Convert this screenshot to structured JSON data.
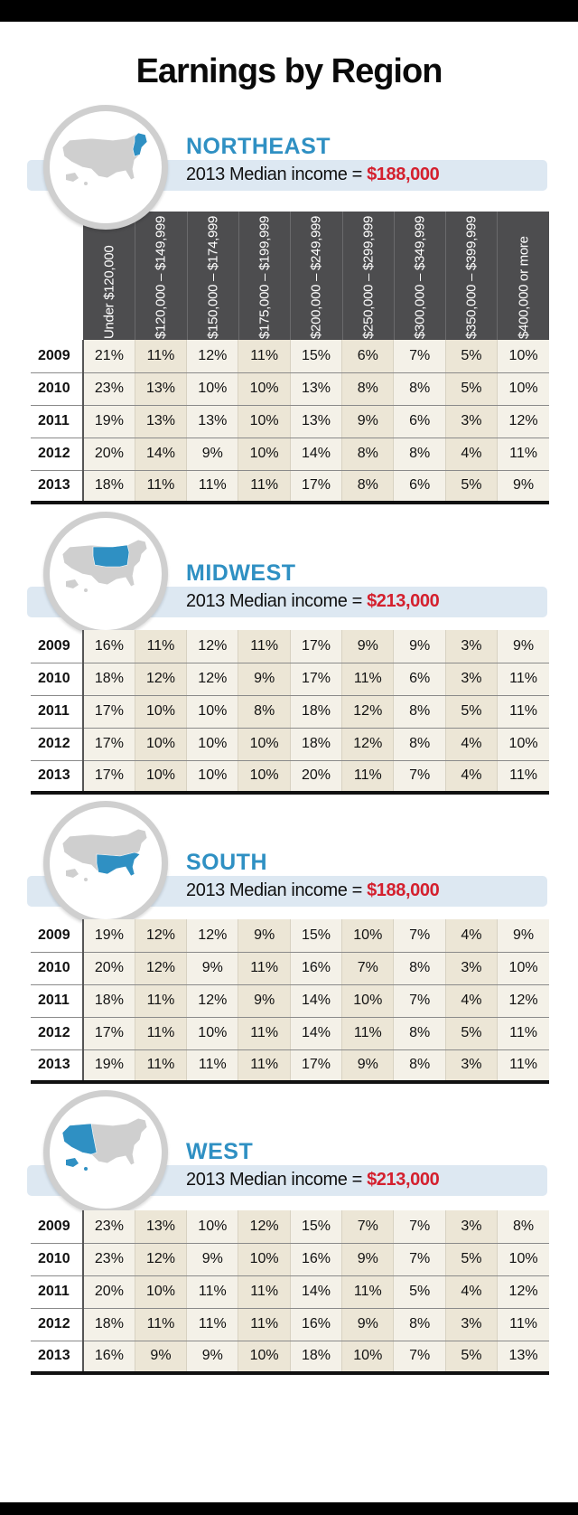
{
  "title": "Earnings by Region",
  "columns": [
    "Under $120,000",
    "$120,000 – $149,999",
    "$150,000 – $174,999",
    "$175,000 – $199,999",
    "$200,000 – $249,999",
    "$250,000 – $299,999",
    "$300,000 – $349,999",
    "$350,000 – $399,999",
    "$400,000 or more"
  ],
  "median_prefix": "2013 Median income = ",
  "colors": {
    "accent_blue": "#2f90c3",
    "median_red": "#d4202e",
    "header_gray": "#4d4d4f",
    "band_blue": "#dde8f2"
  },
  "regions": [
    {
      "name": "NORTHEAST",
      "median": "$188,000",
      "map_icon": "usa-map-northeast-icon",
      "rows": [
        {
          "year": "2009",
          "values": [
            "21%",
            "11%",
            "12%",
            "11%",
            "15%",
            "6%",
            "7%",
            "5%",
            "10%"
          ]
        },
        {
          "year": "2010",
          "values": [
            "23%",
            "13%",
            "10%",
            "10%",
            "13%",
            "8%",
            "8%",
            "5%",
            "10%"
          ]
        },
        {
          "year": "2011",
          "values": [
            "19%",
            "13%",
            "13%",
            "10%",
            "13%",
            "9%",
            "6%",
            "3%",
            "12%"
          ]
        },
        {
          "year": "2012",
          "values": [
            "20%",
            "14%",
            "9%",
            "10%",
            "14%",
            "8%",
            "8%",
            "4%",
            "11%"
          ]
        },
        {
          "year": "2013",
          "values": [
            "18%",
            "11%",
            "11%",
            "11%",
            "17%",
            "8%",
            "6%",
            "5%",
            "9%"
          ]
        }
      ]
    },
    {
      "name": "MIDWEST",
      "median": "$213,000",
      "map_icon": "usa-map-midwest-icon",
      "rows": [
        {
          "year": "2009",
          "values": [
            "16%",
            "11%",
            "12%",
            "11%",
            "17%",
            "9%",
            "9%",
            "3%",
            "9%"
          ]
        },
        {
          "year": "2010",
          "values": [
            "18%",
            "12%",
            "12%",
            "9%",
            "17%",
            "11%",
            "6%",
            "3%",
            "11%"
          ]
        },
        {
          "year": "2011",
          "values": [
            "17%",
            "10%",
            "10%",
            "8%",
            "18%",
            "12%",
            "8%",
            "5%",
            "11%"
          ]
        },
        {
          "year": "2012",
          "values": [
            "17%",
            "10%",
            "10%",
            "10%",
            "18%",
            "12%",
            "8%",
            "4%",
            "10%"
          ]
        },
        {
          "year": "2013",
          "values": [
            "17%",
            "10%",
            "10%",
            "10%",
            "20%",
            "11%",
            "7%",
            "4%",
            "11%"
          ]
        }
      ]
    },
    {
      "name": "SOUTH",
      "median": "$188,000",
      "map_icon": "usa-map-south-icon",
      "rows": [
        {
          "year": "2009",
          "values": [
            "19%",
            "12%",
            "12%",
            "9%",
            "15%",
            "10%",
            "7%",
            "4%",
            "9%"
          ]
        },
        {
          "year": "2010",
          "values": [
            "20%",
            "12%",
            "9%",
            "11%",
            "16%",
            "7%",
            "8%",
            "3%",
            "10%"
          ]
        },
        {
          "year": "2011",
          "values": [
            "18%",
            "11%",
            "12%",
            "9%",
            "14%",
            "10%",
            "7%",
            "4%",
            "12%"
          ]
        },
        {
          "year": "2012",
          "values": [
            "17%",
            "11%",
            "10%",
            "11%",
            "14%",
            "11%",
            "8%",
            "5%",
            "11%"
          ]
        },
        {
          "year": "2013",
          "values": [
            "19%",
            "11%",
            "11%",
            "11%",
            "17%",
            "9%",
            "8%",
            "3%",
            "11%"
          ]
        }
      ]
    },
    {
      "name": "WEST",
      "median": "$213,000",
      "map_icon": "usa-map-west-icon",
      "rows": [
        {
          "year": "2009",
          "values": [
            "23%",
            "13%",
            "10%",
            "12%",
            "15%",
            "7%",
            "7%",
            "3%",
            "8%"
          ]
        },
        {
          "year": "2010",
          "values": [
            "23%",
            "12%",
            "9%",
            "10%",
            "16%",
            "9%",
            "7%",
            "5%",
            "10%"
          ]
        },
        {
          "year": "2011",
          "values": [
            "20%",
            "10%",
            "11%",
            "11%",
            "14%",
            "11%",
            "5%",
            "4%",
            "12%"
          ]
        },
        {
          "year": "2012",
          "values": [
            "18%",
            "11%",
            "11%",
            "11%",
            "16%",
            "9%",
            "8%",
            "3%",
            "11%"
          ]
        },
        {
          "year": "2013",
          "values": [
            "16%",
            "9%",
            "9%",
            "10%",
            "18%",
            "10%",
            "7%",
            "5%",
            "13%"
          ]
        }
      ]
    }
  ]
}
